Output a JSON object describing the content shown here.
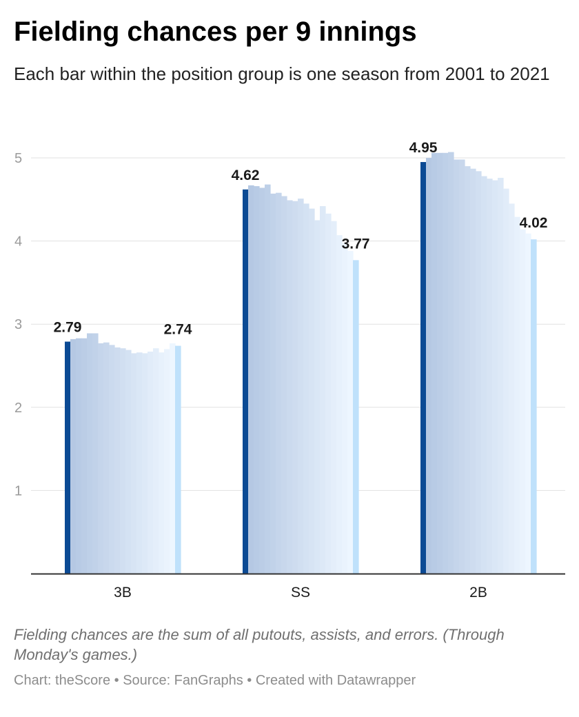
{
  "title": "Fielding chances per 9 innings",
  "subtitle": "Each bar within the position group is one season from 2001 to 2021",
  "notes": "Fielding chances are the sum of all putouts, assists, and errors. (Through Monday's games.)",
  "footer": {
    "chart_credit": "Chart: theScore",
    "source": "Source: FanGraphs",
    "tool": "Created with Datawrapper",
    "separator": " • "
  },
  "colors": {
    "first_season": "#0b4a94",
    "last_season": "#bfe1fb",
    "gradient_start": "#b5c8e3",
    "gradient_end": "#edf6ff",
    "gridline": "#e1e1e1",
    "axis": "#333333"
  },
  "chart_data": {
    "type": "bar",
    "title": "Fielding chances per 9 innings",
    "subtitle": "Each bar within the position group is one season from 2001 to 2021",
    "ylim": [
      0,
      5.1
    ],
    "yticks": [
      1,
      2,
      3,
      4,
      5
    ],
    "grid": true,
    "seasons": [
      2001,
      2002,
      2003,
      2004,
      2005,
      2006,
      2007,
      2008,
      2009,
      2010,
      2011,
      2012,
      2013,
      2014,
      2015,
      2016,
      2017,
      2018,
      2019,
      2020,
      2021
    ],
    "groups": [
      {
        "category": "3B",
        "values": [
          2.79,
          2.82,
          2.83,
          2.83,
          2.89,
          2.89,
          2.77,
          2.78,
          2.75,
          2.72,
          2.71,
          2.69,
          2.65,
          2.66,
          2.65,
          2.67,
          2.71,
          2.66,
          2.7,
          2.77,
          2.74
        ],
        "labels": [
          "2.79",
          "2.74"
        ]
      },
      {
        "category": "SS",
        "values": [
          4.62,
          4.67,
          4.66,
          4.64,
          4.68,
          4.57,
          4.58,
          4.54,
          4.49,
          4.48,
          4.51,
          4.45,
          4.39,
          4.25,
          4.42,
          4.33,
          4.24,
          4.07,
          3.98,
          3.88,
          3.77
        ],
        "labels": [
          "4.62",
          "3.77"
        ]
      },
      {
        "category": "2B",
        "values": [
          4.95,
          5.0,
          5.06,
          5.06,
          5.06,
          5.07,
          4.98,
          4.98,
          4.9,
          4.87,
          4.84,
          4.78,
          4.75,
          4.73,
          4.76,
          4.63,
          4.45,
          4.29,
          4.14,
          4.09,
          4.02
        ],
        "labels": [
          "4.95",
          "4.02"
        ]
      }
    ]
  }
}
